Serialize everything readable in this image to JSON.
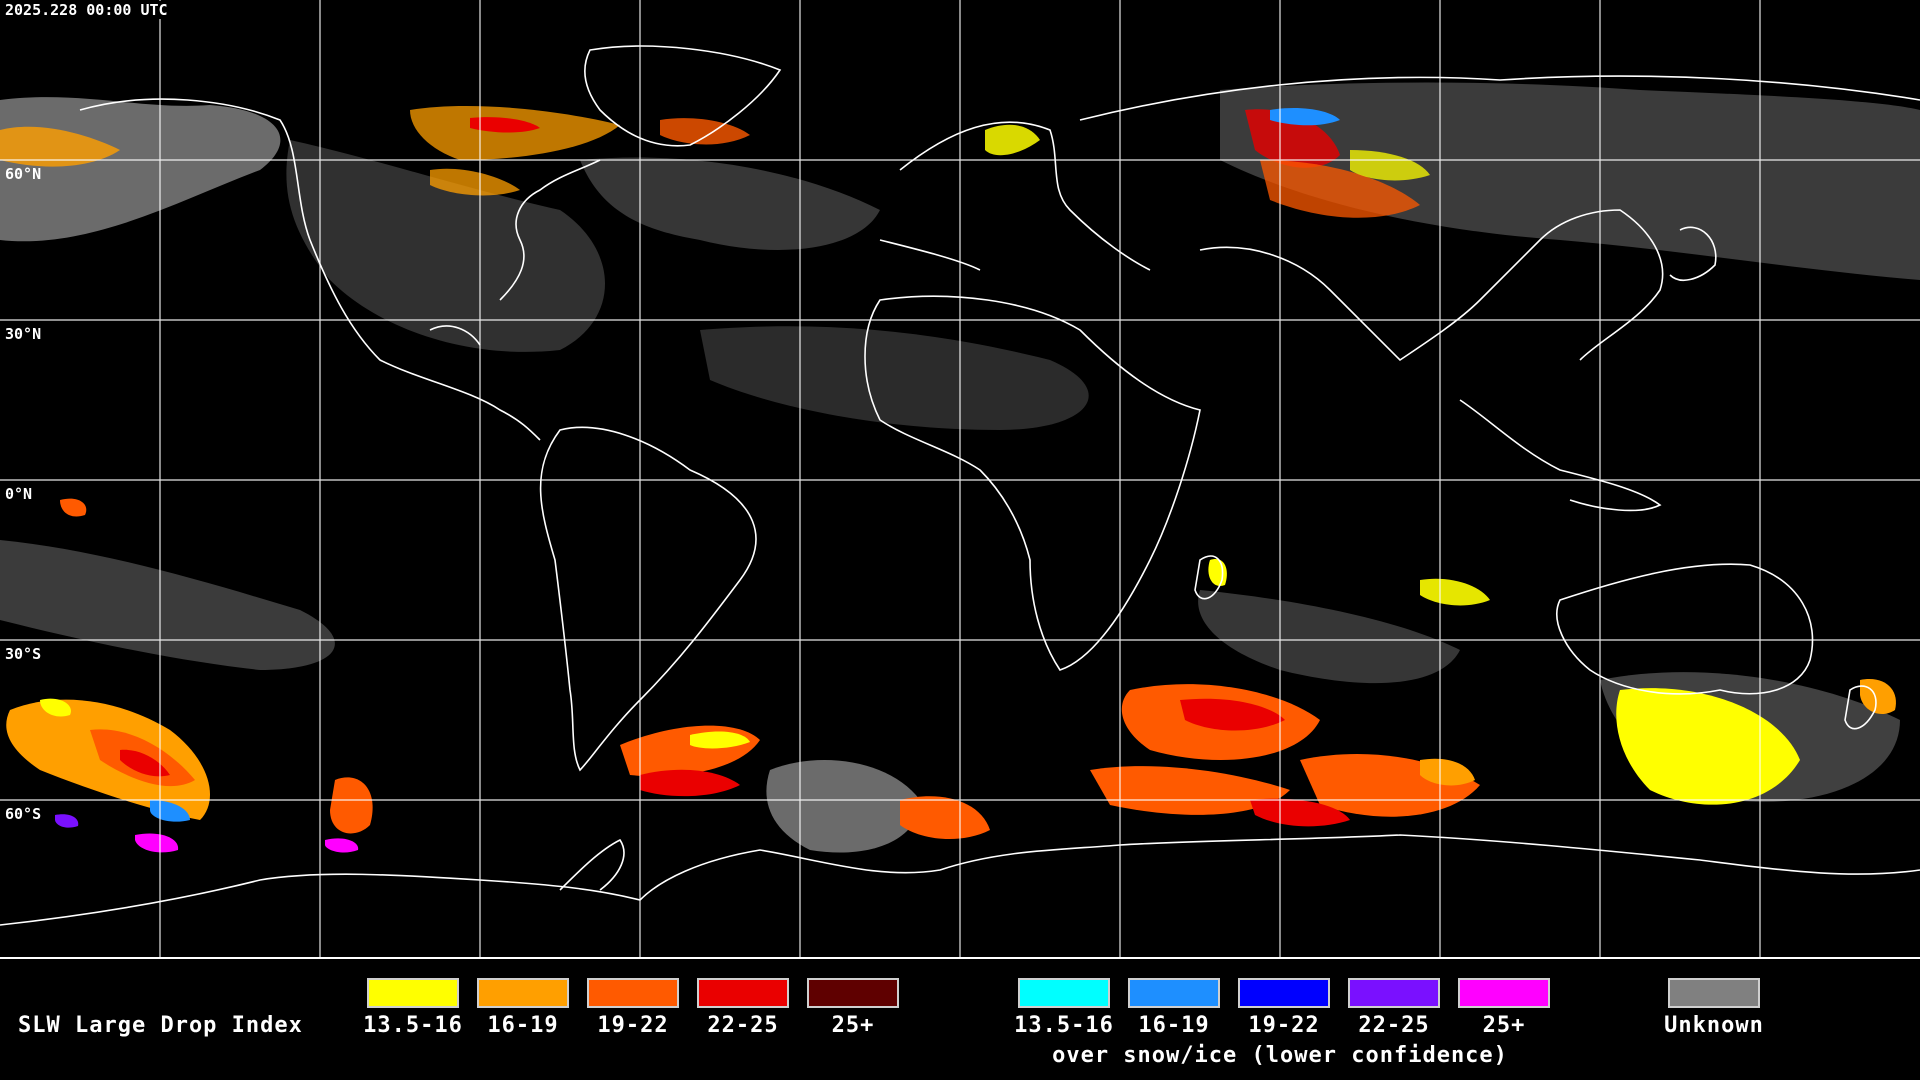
{
  "header": {
    "timestamp": "2025.228 00:00 UTC"
  },
  "map": {
    "latitude_labels": [
      "60°N",
      "30°N",
      "0°N",
      "30°S",
      "60°S"
    ],
    "grid_color": "#ffffff",
    "coastline_color": "#ffffff",
    "background_color": "#000000"
  },
  "legend": {
    "title": "SLW Large Drop Index",
    "standard_bins": [
      {
        "label": "13.5-16",
        "color": "#ffff00"
      },
      {
        "label": "16-19",
        "color": "#ff9f00"
      },
      {
        "label": "19-22",
        "color": "#ff5a00"
      },
      {
        "label": "22-25",
        "color": "#ea0000"
      },
      {
        "label": "25+",
        "color": "#5f0000"
      }
    ],
    "snow_ice_bins": [
      {
        "label": "13.5-16",
        "color": "#00ffff"
      },
      {
        "label": "16-19",
        "color": "#1e8fff"
      },
      {
        "label": "19-22",
        "color": "#0000ff"
      },
      {
        "label": "22-25",
        "color": "#7a10ff"
      },
      {
        "label": "25+",
        "color": "#ff00ff"
      }
    ],
    "snow_ice_caption": "over snow/ice (lower confidence)",
    "unknown": {
      "label": "Unknown",
      "color": "#808080"
    }
  }
}
